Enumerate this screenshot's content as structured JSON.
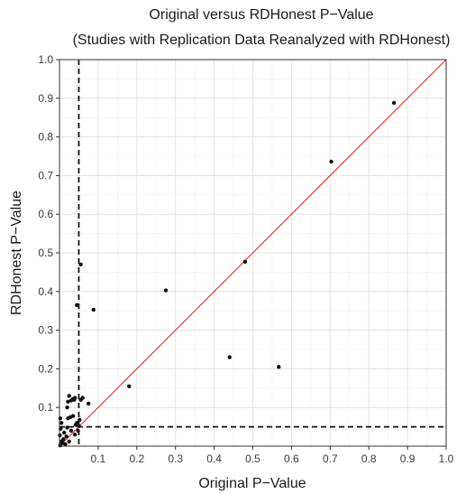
{
  "chart_data": {
    "type": "scatter",
    "title": "Original versus RDHonest P−Value",
    "subtitle": "(Studies with Replication Data Reanalyzed with RDHonest)",
    "xlabel": "Original P−Value",
    "ylabel": "RDHonest P−Value",
    "xlim": [
      0,
      1
    ],
    "ylim": [
      0,
      1
    ],
    "x_ticks": [
      "0.1",
      "0.2",
      "0.3",
      "0.4",
      "0.5",
      "0.6",
      "0.7",
      "0.8",
      "0.9",
      "1.0"
    ],
    "y_ticks": [
      "0.1",
      "0.2",
      "0.3",
      "0.4",
      "0.5",
      "0.6",
      "0.7",
      "0.8",
      "0.9",
      "1.0"
    ],
    "grid": true,
    "reference_lines": {
      "diagonal": {
        "slope": 1,
        "intercept": 0,
        "color": "#e41a1c"
      },
      "vertical_dashed_x": 0.05,
      "horizontal_dashed_y": 0.05
    },
    "points": [
      {
        "x": 0.002,
        "y": 0.002
      },
      {
        "x": 0.004,
        "y": 0.012
      },
      {
        "x": 0.001,
        "y": 0.028
      },
      {
        "x": 0.003,
        "y": 0.045
      },
      {
        "x": 0.005,
        "y": 0.06
      },
      {
        "x": 0.002,
        "y": 0.072
      },
      {
        "x": 0.008,
        "y": 0.008
      },
      {
        "x": 0.01,
        "y": 0.018
      },
      {
        "x": 0.012,
        "y": 0.035
      },
      {
        "x": 0.015,
        "y": 0.005
      },
      {
        "x": 0.018,
        "y": 0.025
      },
      {
        "x": 0.02,
        "y": 0.048
      },
      {
        "x": 0.022,
        "y": 0.072
      },
      {
        "x": 0.025,
        "y": 0.012
      },
      {
        "x": 0.028,
        "y": 0.075
      },
      {
        "x": 0.03,
        "y": 0.04
      },
      {
        "x": 0.02,
        "y": 0.1
      },
      {
        "x": 0.022,
        "y": 0.115
      },
      {
        "x": 0.025,
        "y": 0.13
      },
      {
        "x": 0.03,
        "y": 0.118
      },
      {
        "x": 0.035,
        "y": 0.122
      },
      {
        "x": 0.038,
        "y": 0.12
      },
      {
        "x": 0.04,
        "y": 0.125
      },
      {
        "x": 0.035,
        "y": 0.078
      },
      {
        "x": 0.04,
        "y": 0.03
      },
      {
        "x": 0.042,
        "y": 0.055
      },
      {
        "x": 0.045,
        "y": 0.06
      },
      {
        "x": 0.048,
        "y": 0.04
      },
      {
        "x": 0.05,
        "y": 0.052
      },
      {
        "x": 0.052,
        "y": 0.068
      },
      {
        "x": 0.055,
        "y": 0.12
      },
      {
        "x": 0.06,
        "y": 0.125
      },
      {
        "x": 0.075,
        "y": 0.11
      },
      {
        "x": 0.045,
        "y": 0.365
      },
      {
        "x": 0.055,
        "y": 0.47
      },
      {
        "x": 0.088,
        "y": 0.353
      },
      {
        "x": 0.18,
        "y": 0.155
      },
      {
        "x": 0.275,
        "y": 0.403
      },
      {
        "x": 0.44,
        "y": 0.23
      },
      {
        "x": 0.48,
        "y": 0.477
      },
      {
        "x": 0.567,
        "y": 0.205
      },
      {
        "x": 0.703,
        "y": 0.736
      },
      {
        "x": 0.865,
        "y": 0.888
      }
    ]
  }
}
